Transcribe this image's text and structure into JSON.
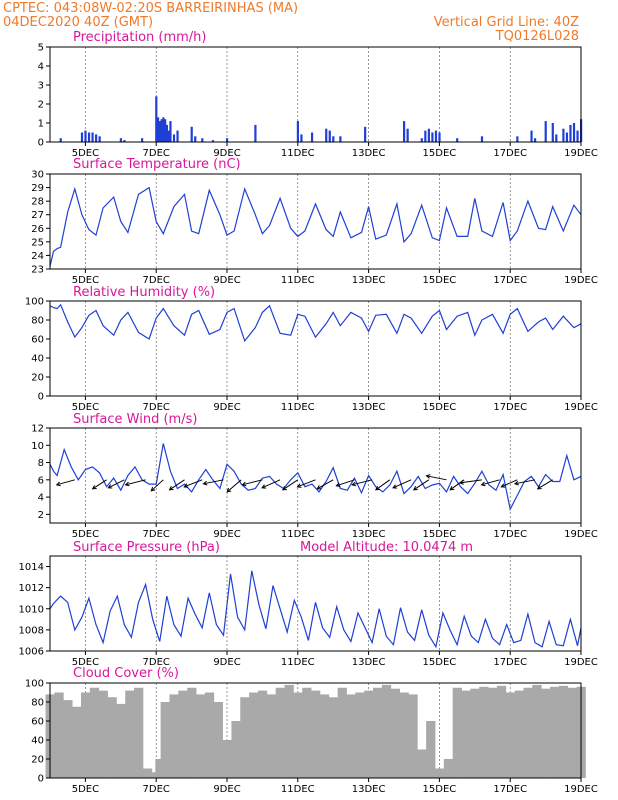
{
  "header": {
    "left_line1": "CPTEC:   043:08W-02:20S   BARREIRINHAS (MA)",
    "left_line2": "04DEC2020 40Z (GMT)",
    "right_line1": "Vertical Grid Line: 40Z",
    "right_line2": "TQ0126L028"
  },
  "colors": {
    "header": "#f07a2a",
    "title": "#d9169b",
    "line": "#1f3fd6",
    "cloud": "#a9a9a9",
    "arrow": "#000000"
  },
  "x_axis": {
    "ticks": [
      "5DEC",
      "7DEC",
      "9DEC",
      "11DEC",
      "13DEC",
      "15DEC",
      "17DEC",
      "19DEC"
    ],
    "tick_days": [
      5,
      7,
      9,
      11,
      13,
      15,
      17,
      19
    ],
    "range_days": [
      4.0,
      19.0
    ]
  },
  "chart_data": [
    {
      "type": "bar",
      "title": "Precipitation (mm/h)",
      "ylim": [
        0,
        5
      ],
      "yticks": [
        "0",
        "1",
        "2",
        "3",
        "4",
        "5"
      ],
      "x": [
        4.3,
        4.9,
        5.0,
        5.1,
        5.2,
        5.3,
        5.4,
        6.0,
        6.1,
        6.6,
        7.0,
        7.05,
        7.1,
        7.15,
        7.2,
        7.25,
        7.3,
        7.35,
        7.4,
        7.5,
        7.6,
        8.0,
        8.1,
        8.3,
        8.6,
        9.0,
        9.8,
        11.0,
        11.1,
        11.4,
        11.8,
        11.9,
        12.0,
        12.2,
        12.9,
        14.0,
        14.1,
        14.5,
        14.6,
        14.7,
        14.8,
        14.9,
        15.0,
        15.5,
        16.2,
        17.2,
        17.6,
        17.7,
        18.0,
        18.2,
        18.3,
        18.5,
        18.6,
        18.7,
        18.8,
        18.9,
        19.0
      ],
      "values": [
        0.2,
        0.5,
        0.6,
        0.5,
        0.5,
        0.4,
        0.3,
        0.2,
        0.1,
        0.2,
        2.4,
        1.3,
        1.1,
        1.2,
        1.3,
        1.2,
        0.9,
        0.6,
        1.1,
        0.4,
        0.6,
        0.8,
        0.3,
        0.2,
        0.1,
        0.2,
        0.9,
        1.1,
        0.4,
        0.5,
        0.7,
        0.6,
        0.3,
        0.3,
        0.8,
        1.1,
        0.7,
        0.2,
        0.6,
        0.7,
        0.5,
        0.6,
        0.5,
        0.2,
        0.3,
        0.3,
        0.6,
        0.2,
        1.1,
        1.0,
        0.4,
        0.7,
        0.5,
        0.9,
        1.0,
        0.6,
        1.2
      ]
    },
    {
      "type": "line",
      "title": "Surface Temperature (nC)",
      "ylim": [
        23,
        30
      ],
      "yticks": [
        "23",
        "24",
        "25",
        "26",
        "27",
        "28",
        "29",
        "30"
      ],
      "series": [
        {
          "x": [
            4.0,
            4.1,
            4.2,
            4.3,
            4.5,
            4.7,
            4.9,
            5.1,
            5.3,
            5.5,
            5.8,
            6.0,
            6.2,
            6.5,
            6.8,
            7.0,
            7.2,
            7.5,
            7.8,
            8.0,
            8.2,
            8.5,
            8.8,
            9.0,
            9.2,
            9.5,
            9.8,
            10.0,
            10.2,
            10.5,
            10.8,
            11.0,
            11.2,
            11.5,
            11.8,
            12.0,
            12.2,
            12.5,
            12.8,
            13.0,
            13.2,
            13.5,
            13.8,
            14.0,
            14.2,
            14.5,
            14.8,
            15.0,
            15.2,
            15.5,
            15.8,
            16.0,
            16.2,
            16.5,
            16.8,
            17.0,
            17.2,
            17.5,
            17.8,
            18.0,
            18.2,
            18.5,
            18.8,
            19.0
          ],
          "values": [
            23.2,
            24.3,
            24.5,
            24.6,
            27.2,
            28.9,
            27.0,
            25.9,
            25.5,
            27.5,
            28.3,
            26.5,
            25.7,
            28.5,
            29.0,
            26.5,
            25.6,
            27.6,
            28.5,
            25.8,
            25.6,
            28.8,
            27.0,
            25.5,
            25.8,
            28.9,
            27.0,
            25.6,
            26.2,
            28.2,
            26.0,
            25.4,
            25.8,
            27.8,
            25.9,
            25.4,
            27.2,
            25.3,
            25.7,
            27.6,
            25.2,
            25.5,
            27.8,
            25.0,
            25.6,
            27.7,
            25.3,
            25.1,
            27.5,
            25.4,
            25.4,
            28.2,
            25.8,
            25.4,
            27.9,
            25.1,
            25.8,
            28.0,
            26.0,
            25.9,
            27.6,
            25.8,
            27.7,
            27.0
          ]
        }
      ]
    },
    {
      "type": "line",
      "title": "Relative Humidity (%)",
      "ylim": [
        0,
        100
      ],
      "yticks": [
        "0",
        "20",
        "40",
        "60",
        "80",
        "100"
      ],
      "series": [
        {
          "x": [
            4.0,
            4.1,
            4.2,
            4.3,
            4.5,
            4.7,
            4.9,
            5.1,
            5.3,
            5.5,
            5.8,
            6.0,
            6.2,
            6.5,
            6.8,
            7.0,
            7.2,
            7.5,
            7.8,
            8.0,
            8.2,
            8.5,
            8.8,
            9.0,
            9.2,
            9.5,
            9.8,
            10.0,
            10.2,
            10.5,
            10.8,
            11.0,
            11.2,
            11.5,
            11.8,
            12.0,
            12.2,
            12.5,
            12.8,
            13.0,
            13.2,
            13.5,
            13.8,
            14.0,
            14.2,
            14.5,
            14.8,
            15.0,
            15.2,
            15.5,
            15.8,
            16.0,
            16.2,
            16.5,
            16.8,
            17.0,
            17.2,
            17.5,
            17.8,
            18.0,
            18.2,
            18.5,
            18.8,
            19.0
          ],
          "values": [
            95,
            93,
            92,
            96,
            78,
            62,
            72,
            85,
            90,
            74,
            64,
            80,
            88,
            67,
            60,
            82,
            92,
            74,
            64,
            86,
            90,
            65,
            70,
            88,
            92,
            58,
            72,
            88,
            95,
            66,
            64,
            86,
            84,
            62,
            76,
            88,
            74,
            88,
            82,
            68,
            85,
            86,
            66,
            86,
            82,
            66,
            84,
            90,
            70,
            84,
            88,
            64,
            80,
            86,
            66,
            86,
            92,
            68,
            78,
            82,
            70,
            84,
            72,
            76
          ]
        }
      ]
    },
    {
      "type": "line",
      "title": "Surface Wind (m/s)",
      "ylim": [
        1,
        12
      ],
      "yticks": [
        "2",
        "4",
        "6",
        "8",
        "10",
        "12"
      ],
      "series": [
        {
          "x": [
            4.0,
            4.1,
            4.2,
            4.4,
            4.6,
            4.8,
            5.0,
            5.2,
            5.4,
            5.6,
            5.8,
            6.0,
            6.2,
            6.4,
            6.6,
            6.8,
            7.0,
            7.2,
            7.4,
            7.6,
            7.8,
            8.0,
            8.2,
            8.4,
            8.6,
            8.8,
            9.0,
            9.2,
            9.4,
            9.6,
            9.8,
            10.0,
            10.2,
            10.4,
            10.6,
            10.8,
            11.0,
            11.2,
            11.4,
            11.6,
            11.8,
            12.0,
            12.2,
            12.4,
            12.6,
            12.8,
            13.0,
            13.2,
            13.4,
            13.6,
            13.8,
            14.0,
            14.2,
            14.4,
            14.6,
            14.8,
            15.0,
            15.2,
            15.4,
            15.6,
            15.8,
            16.0,
            16.2,
            16.4,
            16.6,
            16.8,
            17.0,
            17.2,
            17.4,
            17.6,
            17.8,
            18.0,
            18.2,
            18.4,
            18.6,
            18.8,
            19.0
          ],
          "values": [
            7.8,
            7.0,
            6.5,
            9.5,
            7.5,
            6.0,
            7.2,
            7.5,
            6.8,
            5.2,
            6.2,
            4.8,
            6.5,
            7.5,
            6.0,
            5.5,
            5.5,
            10.2,
            7.0,
            5.0,
            5.5,
            4.6,
            6.0,
            7.2,
            6.0,
            5.0,
            7.8,
            7.0,
            5.5,
            4.8,
            5.0,
            6.2,
            6.4,
            5.5,
            5.0,
            6.0,
            6.8,
            5.2,
            5.5,
            4.6,
            5.8,
            7.4,
            5.0,
            4.8,
            6.2,
            4.5,
            6.5,
            5.2,
            4.6,
            5.4,
            7.0,
            4.4,
            5.2,
            6.4,
            5.0,
            5.4,
            5.6,
            4.6,
            6.4,
            5.2,
            4.4,
            5.6,
            7.0,
            5.4,
            4.8,
            6.6,
            2.6,
            4.2,
            5.8,
            6.4,
            5.2,
            6.6,
            5.8,
            5.8,
            8.8,
            6.0,
            6.4
          ]
        }
      ],
      "wind_barbs": [
        {
          "x": 4.7,
          "dx": -18,
          "dy": 5
        },
        {
          "x": 5.6,
          "dx": -14,
          "dy": 9
        },
        {
          "x": 6.1,
          "dx": -16,
          "dy": 8
        },
        {
          "x": 6.7,
          "dx": -20,
          "dy": 5
        },
        {
          "x": 7.2,
          "dx": -12,
          "dy": 11
        },
        {
          "x": 7.8,
          "dx": -15,
          "dy": 10
        },
        {
          "x": 8.3,
          "dx": -18,
          "dy": 7
        },
        {
          "x": 8.9,
          "dx": -20,
          "dy": 4
        },
        {
          "x": 9.4,
          "dx": -14,
          "dy": 12
        },
        {
          "x": 10.0,
          "dx": -20,
          "dy": 5
        },
        {
          "x": 10.5,
          "dx": -18,
          "dy": 8
        },
        {
          "x": 11.0,
          "dx": -15,
          "dy": 10
        },
        {
          "x": 11.5,
          "dx": -18,
          "dy": 7
        },
        {
          "x": 12.0,
          "dx": -16,
          "dy": 9
        },
        {
          "x": 12.6,
          "dx": -18,
          "dy": 6
        },
        {
          "x": 13.1,
          "dx": -20,
          "dy": 5
        },
        {
          "x": 13.6,
          "dx": -14,
          "dy": 10
        },
        {
          "x": 14.2,
          "dx": -18,
          "dy": 8
        },
        {
          "x": 14.7,
          "dx": -15,
          "dy": 10
        },
        {
          "x": 15.2,
          "dx": -20,
          "dy": -4
        },
        {
          "x": 15.7,
          "dx": -14,
          "dy": 10
        },
        {
          "x": 16.2,
          "dx": -22,
          "dy": 3
        },
        {
          "x": 16.7,
          "dx": -18,
          "dy": 5
        },
        {
          "x": 17.2,
          "dx": -16,
          "dy": 7
        },
        {
          "x": 17.7,
          "dx": -20,
          "dy": 4
        },
        {
          "x": 18.2,
          "dx": -15,
          "dy": 9
        }
      ]
    },
    {
      "type": "line",
      "title": "Surface Pressure (hPa)",
      "annotation": "Model Altitude: 10.0474 m",
      "ylim": [
        1006,
        1015
      ],
      "yticks": [
        "1006",
        "1008",
        "1010",
        "1012",
        "1014"
      ],
      "series": [
        {
          "x": [
            4.0,
            4.1,
            4.3,
            4.5,
            4.7,
            4.9,
            5.1,
            5.3,
            5.5,
            5.7,
            5.9,
            6.1,
            6.3,
            6.5,
            6.7,
            6.9,
            7.1,
            7.3,
            7.5,
            7.7,
            7.9,
            8.1,
            8.3,
            8.5,
            8.7,
            8.9,
            9.1,
            9.3,
            9.5,
            9.7,
            9.9,
            10.1,
            10.3,
            10.5,
            10.7,
            10.9,
            11.1,
            11.3,
            11.5,
            11.7,
            11.9,
            12.1,
            12.3,
            12.5,
            12.7,
            12.9,
            13.1,
            13.3,
            13.5,
            13.7,
            13.9,
            14.1,
            14.3,
            14.5,
            14.7,
            14.9,
            15.1,
            15.3,
            15.5,
            15.7,
            15.9,
            16.1,
            16.3,
            16.5,
            16.7,
            16.9,
            17.1,
            17.3,
            17.5,
            17.7,
            17.9,
            18.1,
            18.3,
            18.5,
            18.7,
            18.9,
            19.0
          ],
          "values": [
            1010.0,
            1010.5,
            1011.2,
            1010.6,
            1008.0,
            1009.2,
            1011.0,
            1008.5,
            1006.8,
            1009.8,
            1011.2,
            1008.5,
            1007.3,
            1010.6,
            1012.3,
            1009.0,
            1006.9,
            1011.2,
            1008.5,
            1007.4,
            1011.0,
            1009.5,
            1008.2,
            1011.5,
            1008.5,
            1007.5,
            1013.3,
            1009.2,
            1008.0,
            1013.6,
            1010.4,
            1008.1,
            1012.2,
            1010.0,
            1007.8,
            1010.8,
            1009.2,
            1007.0,
            1010.6,
            1008.2,
            1007.3,
            1010.2,
            1008.0,
            1006.9,
            1009.6,
            1008.2,
            1006.8,
            1010.0,
            1007.4,
            1006.6,
            1010.1,
            1007.8,
            1007.0,
            1009.9,
            1007.5,
            1006.4,
            1009.6,
            1008.0,
            1006.6,
            1009.3,
            1007.4,
            1006.8,
            1009.0,
            1007.2,
            1006.6,
            1008.5,
            1006.8,
            1007.0,
            1009.5,
            1006.8,
            1006.4,
            1008.8,
            1006.6,
            1006.5,
            1009.0,
            1006.5,
            1008.2
          ]
        }
      ]
    },
    {
      "type": "bar",
      "title": "Cloud Cover (%)",
      "ylim": [
        0,
        100
      ],
      "yticks": [
        "0",
        "20",
        "40",
        "60",
        "80",
        "100"
      ],
      "x": [
        4.0,
        4.25,
        4.5,
        4.75,
        5.0,
        5.25,
        5.5,
        5.75,
        6.0,
        6.25,
        6.5,
        6.75,
        6.9,
        7.0,
        7.1,
        7.25,
        7.5,
        7.75,
        8.0,
        8.25,
        8.5,
        8.75,
        9.0,
        9.1,
        9.25,
        9.5,
        9.75,
        10.0,
        10.25,
        10.5,
        10.75,
        11.0,
        11.25,
        11.5,
        11.75,
        12.0,
        12.25,
        12.5,
        12.75,
        13.0,
        13.25,
        13.5,
        13.75,
        14.0,
        14.25,
        14.5,
        14.75,
        15.0,
        15.25,
        15.5,
        15.75,
        16.0,
        16.25,
        16.5,
        16.75,
        17.0,
        17.25,
        17.5,
        17.75,
        18.0,
        18.25,
        18.5,
        18.75,
        19.0
      ],
      "values": [
        88,
        90,
        82,
        75,
        90,
        95,
        92,
        85,
        78,
        92,
        95,
        10,
        4,
        6,
        20,
        80,
        88,
        92,
        95,
        88,
        90,
        80,
        40,
        2,
        60,
        85,
        90,
        92,
        88,
        95,
        98,
        90,
        95,
        92,
        88,
        85,
        95,
        88,
        90,
        92,
        95,
        98,
        94,
        90,
        88,
        30,
        60,
        10,
        20,
        95,
        92,
        94,
        96,
        95,
        97,
        90,
        92,
        95,
        98,
        94,
        96,
        97,
        95,
        96
      ]
    }
  ]
}
